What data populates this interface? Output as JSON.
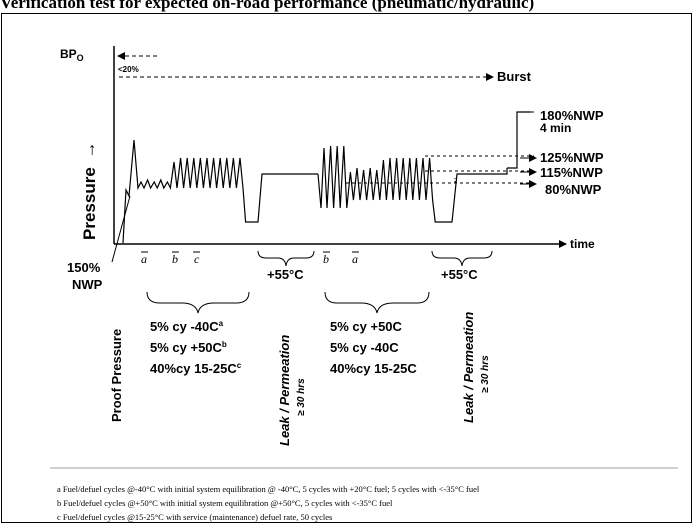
{
  "title": "Verification test for expected on-road performance (pneumatic/hydraulic)",
  "axes": {
    "y_label": "Pressure",
    "y_arrow": "→",
    "x_label": "time",
    "top_label": "BP",
    "top_label_sub": "O"
  },
  "annotations": {
    "bp_margin": "<20%",
    "burst": "Burst",
    "nwp_180": "180%NWP",
    "hold_4min": "4 min",
    "nwp_125": "125%NWP",
    "nwp_115": "115%NWP",
    "nwp_80": "80%NWP",
    "nwp_150_line1": "150%",
    "nwp_150_line2": "NWP"
  },
  "cycle_marks": {
    "a1": "a",
    "b1": "b",
    "c1": "c",
    "b2": "b",
    "a2": "a"
  },
  "temperatures": {
    "first": "+55°C",
    "second": "+55°C"
  },
  "phases": {
    "proof": "Proof Pressure",
    "leak1_line1": "Leak / Permeation",
    "leak1_line2": "≥ 30 hrs",
    "leak2_line1": "Leak / Permeation",
    "leak2_line2": "≥ 30 hrs"
  },
  "cycle_sets": {
    "set1": [
      {
        "text": "5% cy  -40C",
        "sup": "a"
      },
      {
        "text": "5% cy  +50C",
        "sup": "b"
      },
      {
        "text": "40%cy 15-25C",
        "sup": "c"
      }
    ],
    "set2": [
      {
        "text": "5% cy +50C",
        "sup": ""
      },
      {
        "text": "5% cy  -40C",
        "sup": ""
      },
      {
        "text": "40%cy 15-25C",
        "sup": ""
      }
    ]
  },
  "footnotes": {
    "a": "a  Fuel/defuel cycles @-40°C with initial system equilibration @ -40°C, 5 cycles with +20°C fuel; 5 cycles with <-35°C fuel",
    "b": "b  Fuel/defuel cycles @+50°C with initial system equilibration @+50°C, 5 cycles with <-35°C fuel",
    "c": "c  Fuel/defuel cycles @15-25°C with service (maintenance) defuel rate, 50 cycles"
  },
  "colors": {
    "ink": "#000000",
    "frame": "#000000",
    "footnote_rule": "#7f7f7f"
  }
}
